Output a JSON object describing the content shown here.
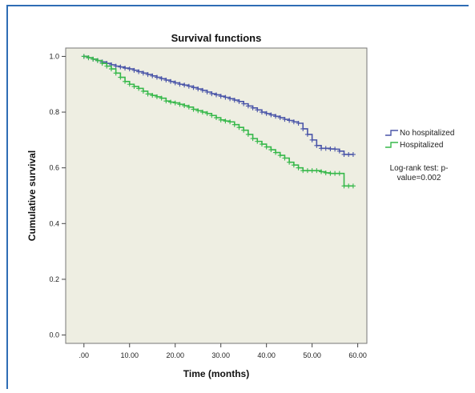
{
  "chart_data": {
    "type": "line",
    "title": "Survival functions",
    "xlabel": "Time (months)",
    "ylabel": "Cumulative survival",
    "xlim": [
      -4,
      62
    ],
    "ylim": [
      -0.03,
      1.03
    ],
    "x_ticks": [
      0,
      10,
      20,
      30,
      40,
      50,
      60
    ],
    "x_tick_labels": [
      ".00",
      "10.00",
      "20.00",
      "30.00",
      "40.00",
      "50.00",
      "60.00"
    ],
    "y_ticks": [
      0,
      0.2,
      0.4,
      0.6,
      0.8,
      1.0
    ],
    "y_tick_labels": [
      "0.0",
      "0.2",
      "0.4",
      "0.6",
      "0.8",
      "1.0"
    ],
    "grid": false,
    "legend_position": "right",
    "annotation": [
      "Log-rank test: p-",
      "value=0.002"
    ],
    "series": [
      {
        "name": "No hospitalized",
        "color": "#4a55a8",
        "x": [
          0,
          1,
          2,
          3,
          4,
          5,
          6,
          7,
          8,
          9,
          10,
          11,
          12,
          13,
          14,
          15,
          16,
          17,
          18,
          19,
          20,
          21,
          22,
          23,
          24,
          25,
          26,
          27,
          28,
          29,
          30,
          31,
          32,
          33,
          34,
          35,
          36,
          37,
          38,
          39,
          40,
          41,
          42,
          43,
          44,
          45,
          46,
          47,
          48,
          49,
          50,
          51,
          52,
          53,
          54,
          55,
          56,
          57,
          58,
          59
        ],
        "y": [
          1.0,
          0.995,
          0.99,
          0.985,
          0.98,
          0.975,
          0.97,
          0.965,
          0.962,
          0.958,
          0.955,
          0.95,
          0.945,
          0.94,
          0.935,
          0.93,
          0.925,
          0.92,
          0.915,
          0.91,
          0.905,
          0.9,
          0.897,
          0.893,
          0.888,
          0.883,
          0.878,
          0.872,
          0.866,
          0.862,
          0.857,
          0.853,
          0.848,
          0.843,
          0.838,
          0.83,
          0.822,
          0.815,
          0.808,
          0.8,
          0.795,
          0.79,
          0.785,
          0.78,
          0.774,
          0.77,
          0.765,
          0.76,
          0.74,
          0.72,
          0.7,
          0.68,
          0.67,
          0.67,
          0.668,
          0.667,
          0.66,
          0.648,
          0.648,
          0.648
        ]
      },
      {
        "name": "Hospitalized",
        "color": "#36b84a",
        "x": [
          0,
          1,
          2,
          3,
          4,
          5,
          6,
          7,
          8,
          9,
          10,
          11,
          12,
          13,
          14,
          15,
          16,
          17,
          18,
          19,
          20,
          21,
          22,
          23,
          24,
          25,
          26,
          27,
          28,
          29,
          30,
          31,
          32,
          33,
          34,
          35,
          36,
          37,
          38,
          39,
          40,
          41,
          42,
          43,
          44,
          45,
          46,
          47,
          48,
          49,
          50,
          51,
          52,
          53,
          54,
          55,
          56,
          57,
          58,
          59
        ],
        "y": [
          1.0,
          0.995,
          0.99,
          0.985,
          0.975,
          0.965,
          0.955,
          0.94,
          0.925,
          0.91,
          0.9,
          0.892,
          0.885,
          0.875,
          0.865,
          0.86,
          0.855,
          0.85,
          0.84,
          0.836,
          0.833,
          0.828,
          0.823,
          0.818,
          0.81,
          0.805,
          0.8,
          0.795,
          0.788,
          0.78,
          0.772,
          0.768,
          0.765,
          0.755,
          0.745,
          0.735,
          0.72,
          0.705,
          0.695,
          0.685,
          0.675,
          0.665,
          0.655,
          0.645,
          0.635,
          0.62,
          0.61,
          0.6,
          0.59,
          0.59,
          0.59,
          0.59,
          0.586,
          0.582,
          0.58,
          0.58,
          0.58,
          0.535,
          0.535,
          0.535
        ]
      }
    ]
  }
}
